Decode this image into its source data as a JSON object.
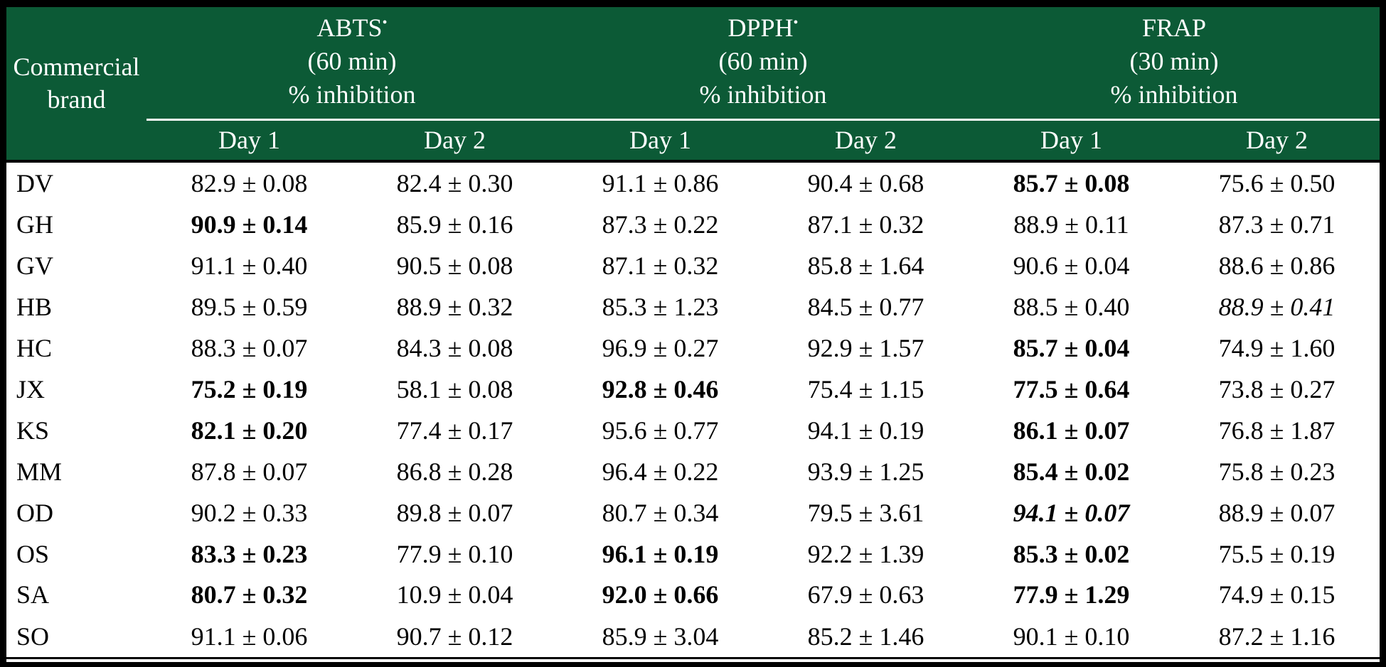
{
  "colors": {
    "header_bg": "#0c5a36",
    "header_text": "#ffffff",
    "body_text": "#000000",
    "border": "#000000",
    "body_bg": "#ffffff"
  },
  "table": {
    "corner": {
      "line1": "Commercial",
      "line2": "brand"
    },
    "groups": [
      {
        "name": "ABTS",
        "radical": "•",
        "time": "(60 min)",
        "unit": "% inhibition"
      },
      {
        "name": "DPPH",
        "radical": "•",
        "time": "(60 min)",
        "unit": "% inhibition"
      },
      {
        "name": "FRAP",
        "radical": "",
        "time": "(30 min)",
        "unit": "% inhibition"
      }
    ],
    "day_labels": [
      "Day 1",
      "Day 2",
      "Day 1",
      "Day 2",
      "Day 1",
      "Day 2"
    ],
    "rows": [
      {
        "brand": "DV",
        "cells": [
          {
            "v": "82.9 ± 0.08",
            "s": "n"
          },
          {
            "v": "82.4 ± 0.30",
            "s": "n"
          },
          {
            "v": "91.1 ± 0.86",
            "s": "n"
          },
          {
            "v": "90.4 ± 0.68",
            "s": "n"
          },
          {
            "v": "85.7 ± 0.08",
            "s": "b"
          },
          {
            "v": "75.6 ± 0.50",
            "s": "n"
          }
        ]
      },
      {
        "brand": "GH",
        "cells": [
          {
            "v": "90.9 ± 0.14",
            "s": "b"
          },
          {
            "v": "85.9 ± 0.16",
            "s": "n"
          },
          {
            "v": "87.3 ± 0.22",
            "s": "n"
          },
          {
            "v": "87.1 ± 0.32",
            "s": "n"
          },
          {
            "v": "88.9 ± 0.11",
            "s": "n"
          },
          {
            "v": "87.3 ± 0.71",
            "s": "n"
          }
        ]
      },
      {
        "brand": "GV",
        "cells": [
          {
            "v": "91.1 ± 0.40",
            "s": "n"
          },
          {
            "v": "90.5 ± 0.08",
            "s": "n"
          },
          {
            "v": "87.1 ± 0.32",
            "s": "n"
          },
          {
            "v": "85.8 ± 1.64",
            "s": "n"
          },
          {
            "v": "90.6 ± 0.04",
            "s": "n"
          },
          {
            "v": "88.6 ± 0.86",
            "s": "n"
          }
        ]
      },
      {
        "brand": "HB",
        "cells": [
          {
            "v": "89.5 ± 0.59",
            "s": "n"
          },
          {
            "v": "88.9 ± 0.32",
            "s": "n"
          },
          {
            "v": "85.3 ± 1.23",
            "s": "n"
          },
          {
            "v": "84.5 ± 0.77",
            "s": "n"
          },
          {
            "v": "88.5 ± 0.40",
            "s": "n"
          },
          {
            "v": "88.9 ± 0.41",
            "s": "i"
          }
        ]
      },
      {
        "brand": "HC",
        "cells": [
          {
            "v": "88.3 ± 0.07",
            "s": "n"
          },
          {
            "v": "84.3 ± 0.08",
            "s": "n"
          },
          {
            "v": "96.9 ± 0.27",
            "s": "n"
          },
          {
            "v": "92.9 ± 1.57",
            "s": "n"
          },
          {
            "v": "85.7 ± 0.04",
            "s": "b"
          },
          {
            "v": "74.9 ± 1.60",
            "s": "n"
          }
        ]
      },
      {
        "brand": "JX",
        "cells": [
          {
            "v": "75.2 ± 0.19",
            "s": "b"
          },
          {
            "v": "58.1 ± 0.08",
            "s": "n"
          },
          {
            "v": "92.8 ± 0.46",
            "s": "b"
          },
          {
            "v": "75.4 ± 1.15",
            "s": "n"
          },
          {
            "v": "77.5 ± 0.64",
            "s": "b"
          },
          {
            "v": "73.8 ± 0.27",
            "s": "n"
          }
        ]
      },
      {
        "brand": "KS",
        "cells": [
          {
            "v": "82.1 ± 0.20",
            "s": "b"
          },
          {
            "v": "77.4 ± 0.17",
            "s": "n"
          },
          {
            "v": "95.6 ± 0.77",
            "s": "n"
          },
          {
            "v": "94.1 ± 0.19",
            "s": "n"
          },
          {
            "v": "86.1 ± 0.07",
            "s": "b"
          },
          {
            "v": "76.8 ± 1.87",
            "s": "n"
          }
        ]
      },
      {
        "brand": "MM",
        "cells": [
          {
            "v": "87.8 ± 0.07",
            "s": "n"
          },
          {
            "v": "86.8 ± 0.28",
            "s": "n"
          },
          {
            "v": "96.4 ± 0.22",
            "s": "n"
          },
          {
            "v": "93.9 ± 1.25",
            "s": "n"
          },
          {
            "v": "85.4 ± 0.02",
            "s": "b"
          },
          {
            "v": "75.8 ± 0.23",
            "s": "n"
          }
        ]
      },
      {
        "brand": "OD",
        "cells": [
          {
            "v": "90.2 ± 0.33",
            "s": "n"
          },
          {
            "v": "89.8 ± 0.07",
            "s": "n"
          },
          {
            "v": "80.7 ± 0.34",
            "s": "n"
          },
          {
            "v": "79.5 ± 3.61",
            "s": "n"
          },
          {
            "v": "94.1 ± 0.07",
            "s": "bi"
          },
          {
            "v": "88.9 ± 0.07",
            "s": "n"
          }
        ]
      },
      {
        "brand": "OS",
        "cells": [
          {
            "v": "83.3 ± 0.23",
            "s": "b"
          },
          {
            "v": "77.9 ± 0.10",
            "s": "n"
          },
          {
            "v": "96.1 ± 0.19",
            "s": "b"
          },
          {
            "v": "92.2 ± 1.39",
            "s": "n"
          },
          {
            "v": "85.3 ± 0.02",
            "s": "b"
          },
          {
            "v": "75.5 ± 0.19",
            "s": "n"
          }
        ]
      },
      {
        "brand": "SA",
        "cells": [
          {
            "v": "80.7 ± 0.32",
            "s": "b"
          },
          {
            "v": "10.9 ± 0.04",
            "s": "n"
          },
          {
            "v": "92.0 ± 0.66",
            "s": "b"
          },
          {
            "v": "67.9 ± 0.63",
            "s": "n"
          },
          {
            "v": "77.9 ± 1.29",
            "s": "b"
          },
          {
            "v": "74.9 ± 0.15",
            "s": "n"
          }
        ]
      },
      {
        "brand": "SO",
        "cells": [
          {
            "v": "91.1 ± 0.06",
            "s": "n"
          },
          {
            "v": "90.7 ± 0.12",
            "s": "n"
          },
          {
            "v": "85.9 ± 3.04",
            "s": "n"
          },
          {
            "v": "85.2 ± 1.46",
            "s": "n"
          },
          {
            "v": "90.1 ± 0.10",
            "s": "n"
          },
          {
            "v": "87.2 ± 1.16",
            "s": "n"
          }
        ]
      }
    ]
  }
}
